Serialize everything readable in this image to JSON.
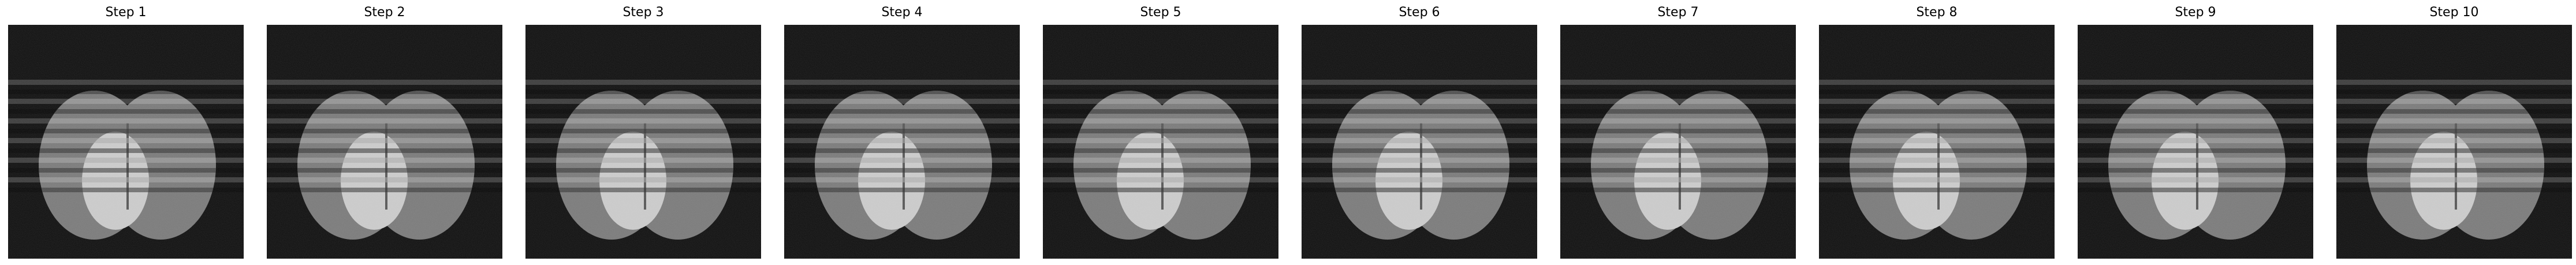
{
  "figure": {
    "panels": [
      {
        "title": "Step 1"
      },
      {
        "title": "Step 2"
      },
      {
        "title": "Step 3"
      },
      {
        "title": "Step 4"
      },
      {
        "title": "Step 5"
      },
      {
        "title": "Step 6"
      },
      {
        "title": "Step 7"
      },
      {
        "title": "Step 8"
      },
      {
        "title": "Step 9"
      },
      {
        "title": "Step 10"
      }
    ],
    "colormap": "gray",
    "image_description_colors": {
      "background": "#0d0d0d",
      "outer_ellipses": "#787878",
      "inner_ellipse": "#c8c8c8",
      "stripe_light": "#a8a8a8",
      "stripe_dark": "#2a2a2a"
    }
  }
}
